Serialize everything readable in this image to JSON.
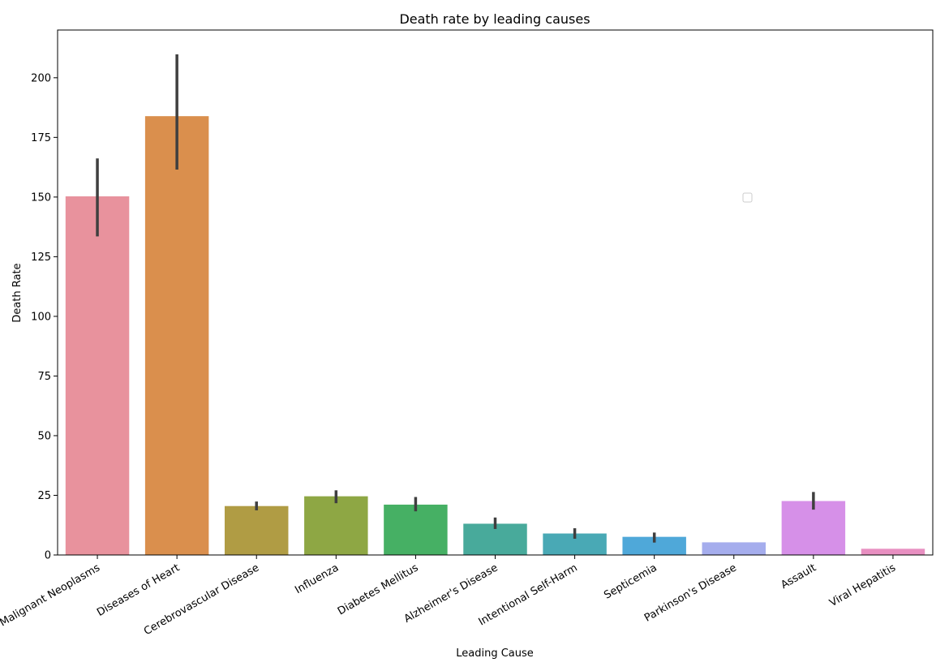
{
  "chart_data": {
    "type": "bar",
    "title": "Death rate by leading causes",
    "xlabel": "Leading Cause",
    "ylabel": "Death Rate",
    "ylim": [
      0,
      220
    ],
    "yticks": [
      0,
      25,
      50,
      75,
      100,
      125,
      150,
      175,
      200
    ],
    "categories": [
      "Malignant Neoplasms",
      "Diseases of Heart",
      "Cerebrovascular Disease",
      "Influenza",
      "Diabetes Mellitus",
      "Alzheimer's Disease",
      "Intentional Self-Harm",
      "Septicemia",
      "Parkinson's Disease",
      "Assault",
      "Viral Hepatitis"
    ],
    "values": [
      150.3,
      183.9,
      20.5,
      24.6,
      21.1,
      13.1,
      9.0,
      7.6,
      5.3,
      22.6,
      2.6
    ],
    "error_low": [
      133.5,
      161.5,
      18.7,
      21.7,
      18.3,
      10.9,
      6.8,
      5.2,
      null,
      19.0,
      null
    ],
    "error_high": [
      166.2,
      209.8,
      22.4,
      27.1,
      24.3,
      15.7,
      11.2,
      9.4,
      null,
      26.4,
      null
    ],
    "colors": [
      "#e8929d",
      "#da8f4d",
      "#b09c44",
      "#8ea744",
      "#46b064",
      "#48aa9b",
      "#49a9b5",
      "#4fa8d9",
      "#a5aded",
      "#d690e8",
      "#e88fc1"
    ],
    "grid": false,
    "legend": "empty box near center-right"
  }
}
